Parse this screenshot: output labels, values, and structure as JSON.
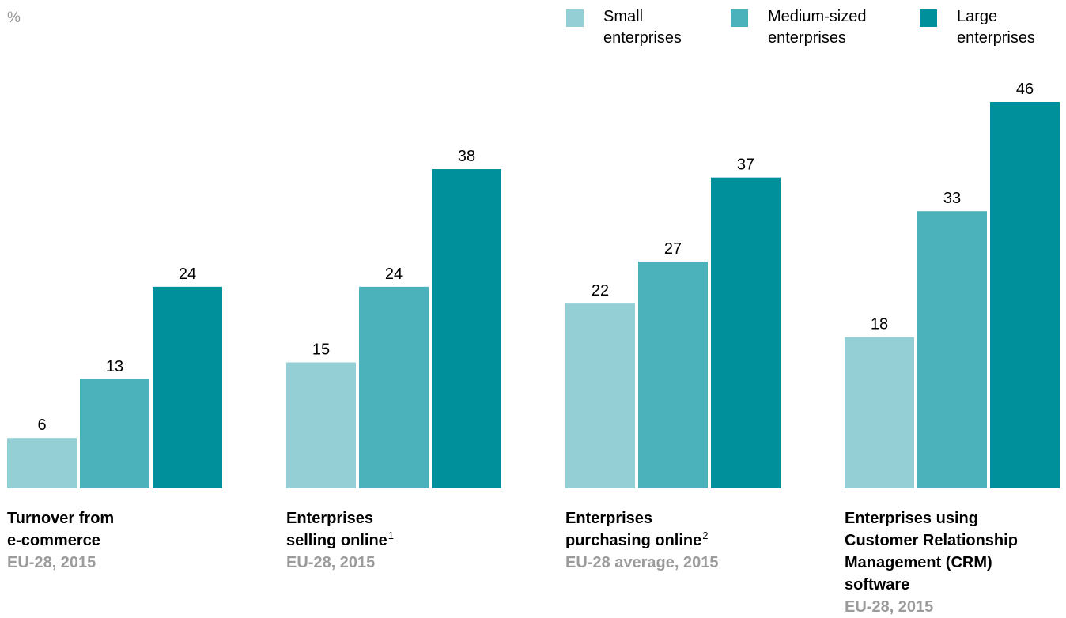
{
  "chart_data": {
    "type": "bar",
    "unit": "%",
    "categories": [
      {
        "title_lines": [
          "Turnover from",
          "e-commerce"
        ],
        "footnote": "",
        "subtitle": "EU-28, 2015"
      },
      {
        "title_lines": [
          "Enterprises",
          "selling online"
        ],
        "footnote": "1",
        "subtitle": "EU-28, 2015"
      },
      {
        "title_lines": [
          "Enterprises",
          "purchasing online"
        ],
        "footnote": "2",
        "subtitle": "EU-28 average, 2015"
      },
      {
        "title_lines": [
          "Enterprises using",
          "Customer Relationship",
          "Management (CRM)",
          "software"
        ],
        "footnote": "",
        "subtitle": "EU-28, 2015"
      }
    ],
    "series": [
      {
        "name": "Small enterprises",
        "name_lines": [
          "Small",
          "enterprises"
        ],
        "color": "#93cfd4",
        "values": [
          6,
          15,
          22,
          18
        ]
      },
      {
        "name": "Medium-sized enterprises",
        "name_lines": [
          "Medium-sized",
          "enterprises"
        ],
        "color": "#4bb1bb",
        "values": [
          13,
          24,
          27,
          33
        ]
      },
      {
        "name": "Large enterprises",
        "name_lines": [
          "Large",
          "enterprises"
        ],
        "color": "#00909c",
        "values": [
          24,
          38,
          37,
          46
        ]
      }
    ],
    "ylim": [
      0,
      46
    ],
    "legend_position": "top-right",
    "grid": false
  }
}
